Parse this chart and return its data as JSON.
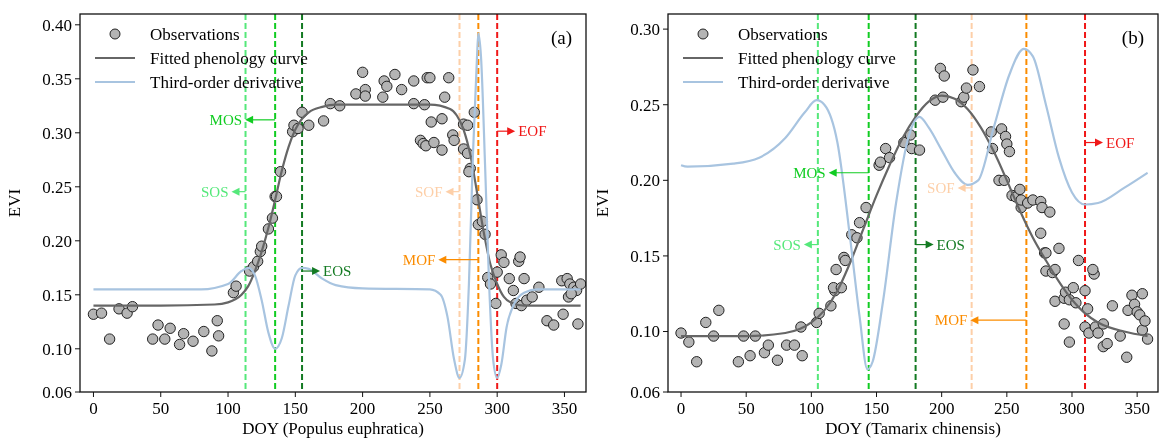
{
  "chart_data": [
    {
      "type": "scatter",
      "xlabel": "DOY (Populus euphratica)",
      "ylabel": "EVI",
      "xlim": [
        -10,
        366
      ],
      "ylim": [
        0.06,
        0.41
      ],
      "xticks": [
        0,
        50,
        100,
        150,
        200,
        250,
        300,
        350
      ],
      "yticks": [
        {
          "value": 0.06,
          "label": "0.06"
        },
        {
          "value": 0.1,
          "label": "0.10"
        },
        {
          "value": 0.15,
          "label": "0.15"
        },
        {
          "value": 0.2,
          "label": "0.20"
        },
        {
          "value": 0.25,
          "label": "0.25"
        },
        {
          "value": 0.3,
          "label": "0.30"
        },
        {
          "value": 0.35,
          "label": "0.35"
        },
        {
          "value": 0.4,
          "label": "0.40"
        }
      ],
      "legend": "top left",
      "grid": false,
      "annotations": [
        "(a)"
      ],
      "ref_lines": [
        {
          "axis": "x",
          "value": 113,
          "label": "SOS",
          "color": "#55e87a",
          "line_style": "dashed"
        },
        {
          "axis": "x",
          "value": 135,
          "label": "MOS",
          "color": "#11cc22",
          "line_style": "dashed"
        },
        {
          "axis": "x",
          "value": 155,
          "label": "EOS",
          "color": "#137a22",
          "line_style": "dashed"
        },
        {
          "axis": "x",
          "value": 272,
          "label": "SOF",
          "color": "#fdcfa8",
          "line_style": "dashed"
        },
        {
          "axis": "x",
          "value": 286,
          "label": "MOF",
          "color": "#fb8c00",
          "line_style": "dashed"
        },
        {
          "axis": "x",
          "value": 300,
          "label": "EOF",
          "color": "#f01818",
          "line_style": "dashed"
        }
      ],
      "series": [
        {
          "name": "Observations",
          "type": "scatter",
          "marker": "circle",
          "color": "#b4b4b4",
          "x": [
            0,
            6,
            12,
            19,
            25,
            29,
            44,
            48,
            53,
            57,
            64,
            67,
            74,
            82,
            88,
            92,
            93,
            104,
            106,
            116,
            119,
            122,
            124,
            125,
            130,
            133,
            135,
            136,
            139,
            148,
            149,
            152,
            155,
            160,
            171,
            176,
            183,
            195,
            200,
            202,
            202,
            215,
            216,
            218,
            224,
            229,
            238,
            238,
            246,
            248,
            250,
            251,
            243,
            245,
            247,
            253,
            259,
            259,
            261,
            264,
            267,
            268,
            275,
            278,
            283,
            275,
            278,
            280,
            279,
            285,
            286,
            289,
            291,
            293,
            295,
            299,
            300,
            303,
            305,
            309,
            312,
            314,
            318,
            316,
            317,
            320,
            322,
            326,
            331,
            337,
            342,
            349,
            348,
            352,
            354,
            357,
            359,
            353,
            355,
            360,
            362
          ],
          "values": [
            0.132,
            0.133,
            0.109,
            0.137,
            0.133,
            0.139,
            0.109,
            0.122,
            0.109,
            0.119,
            0.104,
            0.114,
            0.107,
            0.116,
            0.098,
            0.126,
            0.112,
            0.152,
            0.158,
            0.172,
            0.176,
            0.181,
            0.19,
            0.195,
            0.211,
            0.221,
            0.241,
            0.241,
            0.264,
            0.301,
            0.307,
            0.304,
            0.319,
            0.307,
            0.311,
            0.327,
            0.325,
            0.336,
            0.356,
            0.34,
            0.334,
            0.333,
            0.348,
            0.343,
            0.354,
            0.34,
            0.348,
            0.327,
            0.326,
            0.351,
            0.351,
            0.31,
            0.293,
            0.29,
            0.288,
            0.291,
            0.284,
            0.313,
            0.333,
            0.351,
            0.298,
            0.293,
            0.308,
            0.307,
            0.319,
            0.285,
            0.281,
            0.267,
            0.264,
            0.238,
            0.215,
            0.218,
            0.206,
            0.166,
            0.16,
            0.142,
            0.171,
            0.187,
            0.18,
            0.165,
            0.154,
            0.142,
            0.14,
            0.181,
            0.185,
            0.165,
            0.145,
            0.148,
            0.157,
            0.126,
            0.122,
            0.132,
            0.163,
            0.165,
            0.16,
            0.157,
            0.154,
            0.148,
            0.151,
            0.123,
            0.16
          ]
        },
        {
          "name": "Fitted phenology curve",
          "type": "line",
          "color": "#666666",
          "x": [
            0,
            50,
            90,
            100,
            110,
            115,
            120,
            125,
            130,
            135,
            140,
            145,
            150,
            155,
            160,
            170,
            180,
            200,
            250,
            265,
            270,
            275,
            280,
            285,
            290,
            295,
            300,
            305,
            310,
            320,
            362
          ],
          "values": [
            0.14,
            0.14,
            0.141,
            0.143,
            0.15,
            0.158,
            0.172,
            0.19,
            0.212,
            0.238,
            0.265,
            0.287,
            0.303,
            0.313,
            0.319,
            0.324,
            0.326,
            0.326,
            0.326,
            0.322,
            0.316,
            0.303,
            0.28,
            0.245,
            0.208,
            0.178,
            0.16,
            0.148,
            0.143,
            0.14,
            0.14
          ]
        },
        {
          "name": "Third-order derivative",
          "type": "line",
          "color": "#a8c4e0",
          "x": [
            0,
            80,
            100,
            110,
            115,
            120,
            125,
            130,
            135,
            140,
            145,
            150,
            155,
            160,
            170,
            180,
            200,
            250,
            258,
            263,
            268,
            272,
            276,
            279,
            282,
            285,
            286,
            288,
            291,
            294,
            297,
            300,
            303,
            307,
            312,
            320,
            330,
            362
          ],
          "values": [
            0.155,
            0.155,
            0.16,
            0.172,
            0.175,
            0.168,
            0.145,
            0.115,
            0.1,
            0.11,
            0.14,
            0.168,
            0.175,
            0.174,
            0.165,
            0.159,
            0.156,
            0.155,
            0.15,
            0.13,
            0.09,
            0.073,
            0.09,
            0.16,
            0.28,
            0.37,
            0.392,
            0.37,
            0.27,
            0.16,
            0.09,
            0.073,
            0.085,
            0.12,
            0.14,
            0.152,
            0.155,
            0.155
          ]
        }
      ]
    },
    {
      "type": "scatter",
      "xlabel": "DOY (Tamarix chinensis)",
      "ylabel": "EVI",
      "xlim": [
        -10,
        366
      ],
      "ylim": [
        0.06,
        0.31
      ],
      "xticks": [
        0,
        50,
        100,
        150,
        200,
        250,
        300,
        350
      ],
      "yticks": [
        {
          "value": 0.06,
          "label": "0.06"
        },
        {
          "value": 0.1,
          "label": "0.10"
        },
        {
          "value": 0.15,
          "label": "0.15"
        },
        {
          "value": 0.2,
          "label": "0.20"
        },
        {
          "value": 0.25,
          "label": "0.25"
        },
        {
          "value": 0.3,
          "label": "0.30"
        }
      ],
      "legend": "top left",
      "grid": false,
      "annotations": [
        "(b)"
      ],
      "ref_lines": [
        {
          "axis": "x",
          "value": 105,
          "label": "SOS",
          "color": "#55e87a",
          "line_style": "dashed"
        },
        {
          "axis": "x",
          "value": 144,
          "label": "MOS",
          "color": "#11cc22",
          "line_style": "dashed"
        },
        {
          "axis": "x",
          "value": 180,
          "label": "EOS",
          "color": "#137a22",
          "line_style": "dashed"
        },
        {
          "axis": "x",
          "value": 223,
          "label": "SOF",
          "color": "#fdcfa8",
          "line_style": "dashed"
        },
        {
          "axis": "x",
          "value": 265,
          "label": "MOF",
          "color": "#fb8c00",
          "line_style": "dashed"
        },
        {
          "axis": "x",
          "value": 310,
          "label": "EOF",
          "color": "#f01818",
          "line_style": "dashed"
        }
      ],
      "series": [
        {
          "name": "Observations",
          "type": "scatter",
          "marker": "circle",
          "color": "#b4b4b4",
          "x": [
            0,
            6,
            12,
            19,
            25,
            29,
            44,
            48,
            53,
            57,
            64,
            67,
            74,
            81,
            87,
            92,
            93,
            104,
            106,
            115,
            118,
            119,
            117,
            123,
            125,
            126,
            131,
            135,
            137,
            142,
            152,
            153,
            157,
            160,
            171,
            176,
            177,
            183,
            195,
            199,
            202,
            201,
            215,
            217,
            219,
            224,
            229,
            238,
            239,
            246,
            249,
            250,
            252,
            244,
            248,
            254,
            257,
            261,
            260,
            261,
            266,
            270,
            276,
            277,
            283,
            276,
            279,
            280,
            280,
            285,
            287,
            290,
            287,
            294,
            295,
            298,
            301,
            303,
            305,
            310,
            310,
            312,
            313,
            317,
            316,
            318,
            320,
            324,
            324,
            327,
            331,
            337,
            342,
            343,
            346,
            348,
            350,
            352,
            354,
            354,
            356,
            358,
            294,
            298
          ],
          "values": [
            0.099,
            0.093,
            0.08,
            0.106,
            0.097,
            0.114,
            0.08,
            0.097,
            0.084,
            0.097,
            0.086,
            0.091,
            0.081,
            0.091,
            0.091,
            0.103,
            0.084,
            0.106,
            0.112,
            0.117,
            0.127,
            0.141,
            0.129,
            0.129,
            0.149,
            0.147,
            0.164,
            0.162,
            0.172,
            0.182,
            0.21,
            0.212,
            0.221,
            0.215,
            0.225,
            0.23,
            0.221,
            0.22,
            0.253,
            0.274,
            0.269,
            0.255,
            0.252,
            0.255,
            0.261,
            0.273,
            0.262,
            0.232,
            0.221,
            0.234,
            0.229,
            0.224,
            0.219,
            0.2,
            0.2,
            0.19,
            0.189,
            0.182,
            0.194,
            0.187,
            0.185,
            0.187,
            0.186,
            0.182,
            0.179,
            0.165,
            0.152,
            0.152,
            0.14,
            0.139,
            0.141,
            0.155,
            0.12,
            0.122,
            0.126,
            0.121,
            0.129,
            0.119,
            0.147,
            0.127,
            0.103,
            0.115,
            0.099,
            0.138,
            0.141,
            0.103,
            0.099,
            0.105,
            0.09,
            0.092,
            0.117,
            0.097,
            0.083,
            0.114,
            0.124,
            0.118,
            0.113,
            0.111,
            0.125,
            0.101,
            0.107,
            0.095,
            0.105,
            0.093
          ]
        },
        {
          "name": "Fitted phenology curve",
          "type": "line",
          "color": "#666666",
          "x": [
            0,
            50,
            80,
            100,
            110,
            120,
            130,
            140,
            150,
            160,
            170,
            180,
            190,
            200,
            210,
            220,
            230,
            240,
            250,
            260,
            270,
            280,
            290,
            300,
            310,
            320,
            340,
            358
          ],
          "values": [
            0.097,
            0.097,
            0.099,
            0.106,
            0.114,
            0.127,
            0.146,
            0.168,
            0.19,
            0.21,
            0.228,
            0.242,
            0.252,
            0.256,
            0.254,
            0.247,
            0.235,
            0.219,
            0.2,
            0.18,
            0.162,
            0.147,
            0.133,
            0.121,
            0.112,
            0.106,
            0.1,
            0.097
          ]
        },
        {
          "name": "Third-order derivative",
          "type": "line",
          "color": "#a8c4e0",
          "x": [
            0,
            5,
            40,
            60,
            80,
            95,
            104,
            110,
            120,
            130,
            137,
            143,
            147,
            155,
            165,
            175,
            183,
            190,
            200,
            210,
            220,
            228,
            240,
            252,
            263,
            270,
            280,
            290,
            300,
            310,
            320,
            340,
            358
          ],
          "values": [
            0.21,
            0.209,
            0.211,
            0.215,
            0.228,
            0.245,
            0.253,
            0.25,
            0.225,
            0.16,
            0.11,
            0.075,
            0.08,
            0.12,
            0.185,
            0.23,
            0.242,
            0.235,
            0.22,
            0.205,
            0.197,
            0.2,
            0.235,
            0.27,
            0.287,
            0.282,
            0.25,
            0.215,
            0.192,
            0.184,
            0.185,
            0.195,
            0.205
          ]
        }
      ]
    }
  ]
}
